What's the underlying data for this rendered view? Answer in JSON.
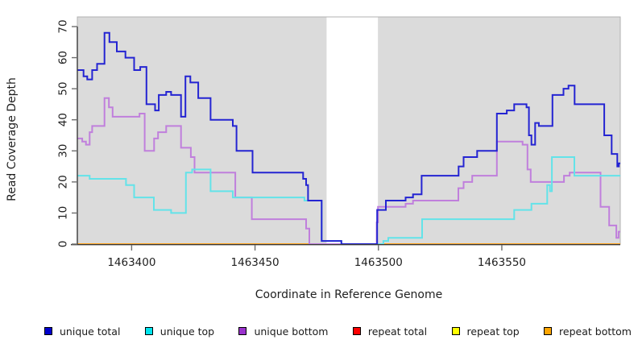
{
  "figure": {
    "ylabel": "Read Coverage Depth",
    "xlabel": "Coordinate in Reference Genome"
  },
  "chart_data": {
    "type": "line",
    "subtype": "step-coverage",
    "title": "",
    "xlabel": "Coordinate in Reference Genome",
    "ylabel": "Read Coverage Depth",
    "xlim": [
      1463378,
      1463598
    ],
    "ylim": [
      0,
      73
    ],
    "x_ticks": [
      "1463400",
      "1463450",
      "1463500",
      "1463550"
    ],
    "x_tick_values": [
      1463400,
      1463450,
      1463500,
      1463550
    ],
    "y_ticks": [
      "0",
      "10",
      "20",
      "30",
      "40",
      "50",
      "60",
      "70"
    ],
    "y_tick_values": [
      0,
      10,
      20,
      30,
      40,
      50,
      60,
      70
    ],
    "panel_bg": "#DBDBDB",
    "gap_region": {
      "start": 1463479,
      "end": 1463499.8,
      "color": "#FFFFFF"
    },
    "grid": "off",
    "legend_position": "bottom",
    "series": [
      {
        "name": "repeat total",
        "color": "#FF0000",
        "line_color": "#E00000",
        "step_points": [
          [
            1463378,
            0
          ]
        ]
      },
      {
        "name": "repeat top",
        "color": "#FFFF00",
        "line_color": "#FFFF00",
        "step_points": [
          [
            1463378,
            0
          ]
        ]
      },
      {
        "name": "repeat bottom",
        "color": "#FFA500",
        "line_color": "#FFA520",
        "step_points": [
          [
            1463378,
            0
          ]
        ]
      },
      {
        "name": "unique bottom",
        "color": "#9A32CD",
        "line_color": "#C07FDC",
        "step_points": [
          [
            1463378,
            34
          ],
          [
            1463380,
            33
          ],
          [
            1463381.5,
            32
          ],
          [
            1463383,
            36
          ],
          [
            1463384,
            38
          ],
          [
            1463389,
            47
          ],
          [
            1463390.8,
            44
          ],
          [
            1463392.3,
            41
          ],
          [
            1463403.2,
            42
          ],
          [
            1463405.3,
            30
          ],
          [
            1463409.1,
            34
          ],
          [
            1463410.7,
            36
          ],
          [
            1463414,
            38
          ],
          [
            1463420,
            31
          ],
          [
            1463424,
            28
          ],
          [
            1463425.5,
            23
          ],
          [
            1463442,
            15
          ],
          [
            1463448.7,
            8
          ],
          [
            1463470.7,
            5
          ],
          [
            1463472,
            0
          ],
          [
            1463499.3,
            7
          ],
          [
            1463499.8,
            12
          ],
          [
            1463511,
            13
          ],
          [
            1463514,
            14
          ],
          [
            1463532.4,
            18
          ],
          [
            1463534.5,
            20
          ],
          [
            1463538,
            22
          ],
          [
            1463548,
            33
          ],
          [
            1463558.4,
            32
          ],
          [
            1463560.4,
            24
          ],
          [
            1463561.7,
            20
          ],
          [
            1463575.2,
            22
          ],
          [
            1463577.5,
            23
          ],
          [
            1463590,
            12
          ],
          [
            1463593.5,
            6
          ],
          [
            1463596.4,
            2
          ],
          [
            1463597.3,
            4
          ]
        ]
      },
      {
        "name": "unique top",
        "color": "#00E5EE",
        "line_color": "#63E3E9",
        "step_points": [
          [
            1463378,
            22
          ],
          [
            1463383,
            21
          ],
          [
            1463397.7,
            19
          ],
          [
            1463401,
            15
          ],
          [
            1463409,
            11
          ],
          [
            1463416,
            10
          ],
          [
            1463422,
            23
          ],
          [
            1463424.5,
            24
          ],
          [
            1463432,
            17
          ],
          [
            1463441,
            15
          ],
          [
            1463470,
            14
          ],
          [
            1463477,
            1
          ],
          [
            1463485,
            0
          ],
          [
            1463502,
            1
          ],
          [
            1463504,
            2
          ],
          [
            1463517.7,
            8
          ],
          [
            1463555,
            11
          ],
          [
            1463562,
            13
          ],
          [
            1463568.4,
            19
          ],
          [
            1463569.5,
            17
          ],
          [
            1463570.3,
            28
          ],
          [
            1463579.4,
            22
          ]
        ]
      },
      {
        "name": "unique total",
        "color": "#0000CD",
        "line_color": "#2424D2",
        "step_points": [
          [
            1463378,
            56
          ],
          [
            1463380.5,
            54
          ],
          [
            1463382,
            53
          ],
          [
            1463384,
            56
          ],
          [
            1463386,
            58
          ],
          [
            1463389,
            68
          ],
          [
            1463391,
            65
          ],
          [
            1463394,
            62
          ],
          [
            1463397.5,
            60
          ],
          [
            1463401,
            56
          ],
          [
            1463403.5,
            57
          ],
          [
            1463406,
            45
          ],
          [
            1463409.5,
            43
          ],
          [
            1463411,
            48
          ],
          [
            1463414,
            49
          ],
          [
            1463416,
            48
          ],
          [
            1463420,
            41
          ],
          [
            1463421.8,
            54
          ],
          [
            1463423.8,
            52
          ],
          [
            1463427,
            47
          ],
          [
            1463432,
            40
          ],
          [
            1463441,
            38
          ],
          [
            1463442.5,
            30
          ],
          [
            1463449,
            23
          ],
          [
            1463469.5,
            21
          ],
          [
            1463470.7,
            19
          ],
          [
            1463471.5,
            14
          ],
          [
            1463477,
            1
          ],
          [
            1463485,
            0
          ],
          [
            1463499.5,
            11
          ],
          [
            1463503,
            14
          ],
          [
            1463511,
            15
          ],
          [
            1463514,
            16
          ],
          [
            1463517.5,
            22
          ],
          [
            1463532.5,
            25
          ],
          [
            1463534.5,
            28
          ],
          [
            1463540,
            30
          ],
          [
            1463548,
            42
          ],
          [
            1463552,
            43
          ],
          [
            1463555,
            45
          ],
          [
            1463560,
            44
          ],
          [
            1463561,
            35
          ],
          [
            1463562,
            32
          ],
          [
            1463563.5,
            39
          ],
          [
            1463565,
            38
          ],
          [
            1463570.5,
            48
          ],
          [
            1463575,
            50
          ],
          [
            1463577,
            51
          ],
          [
            1463579.5,
            45
          ],
          [
            1463591.5,
            35
          ],
          [
            1463594.5,
            29
          ],
          [
            1463596.8,
            25
          ],
          [
            1463597.4,
            26
          ]
        ]
      }
    ],
    "legend": [
      {
        "label": "unique total",
        "color": "#0000CD"
      },
      {
        "label": "unique top",
        "color": "#00E5EE"
      },
      {
        "label": "unique bottom",
        "color": "#9A32CD"
      },
      {
        "label": "repeat total",
        "color": "#FF0000"
      },
      {
        "label": "repeat top",
        "color": "#FFFF00"
      },
      {
        "label": "repeat bottom",
        "color": "#FFA500"
      }
    ]
  }
}
